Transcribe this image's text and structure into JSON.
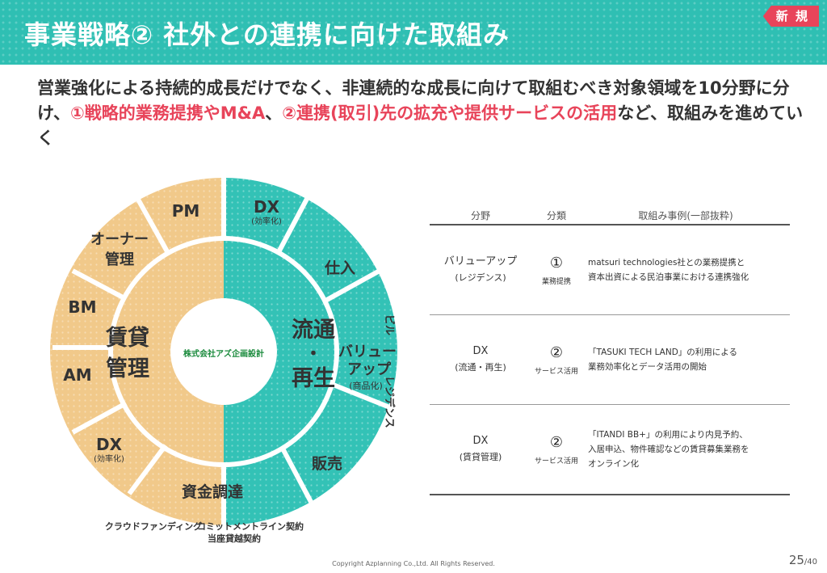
{
  "header": {
    "title": "事業戦略② 社外との連携に向けた取組み",
    "badge": "新 規"
  },
  "lead": {
    "part1": "営業強化による持続的成長だけでなく、非連続的な成長に向けて取組むべき対象領域を10分野に分け、",
    "highlight1": "①戦略的業務提携やM&A",
    "part2": "、",
    "highlight2": "②連携(取引)先の拡充や提供サービスの活用",
    "part3": "など、取組みを進めていく"
  },
  "donut": {
    "center_company": "株式会社アズ企画設計",
    "left_segment": {
      "line1": "賃貸",
      "line2": "管理"
    },
    "right_segment": {
      "line1": "流通",
      "dot": "・",
      "line2": "再生"
    },
    "value_up": {
      "line1": "バリュー",
      "line2": "アップ",
      "sub": "(商品化)"
    },
    "outer": {
      "dx_right": "DX",
      "dx_right_sub": "(効率化)",
      "shiire": "仕入",
      "biru": "ビル",
      "residence": "レジデンス",
      "hanbai": "販売",
      "shikin": "資金調達",
      "dx_left": "DX",
      "dx_left_sub": "(効率化)",
      "am": "AM",
      "bm": "BM",
      "owner": "オーナー",
      "owner2": "管理",
      "pm": "PM"
    },
    "bottom_labels": {
      "crowd": "クラウドファンディング",
      "commitment": "コミットメントライン契約",
      "overdraft": "当座貸越契約"
    },
    "colors": {
      "teal": "#2fbfb3",
      "tan": "#f0c887"
    }
  },
  "table": {
    "headers": [
      "分野",
      "分類",
      "取組み事例(一部抜粋)"
    ],
    "rows": [
      {
        "field": "バリューアップ",
        "field_sub": "(レジデンス)",
        "num": "①",
        "class": "業務提携",
        "ex1": "matsuri technologies社との業務提携と",
        "ex2": "資本出資による民泊事業における連携強化",
        "ex3": ""
      },
      {
        "field": "DX",
        "field_sub": "(流通・再生)",
        "num": "②",
        "class": "サービス活用",
        "ex1": "「TASUKI TECH LAND」の利用による",
        "ex2": "業務効率化とデータ活用の開始",
        "ex3": ""
      },
      {
        "field": "DX",
        "field_sub": "(賃貸管理)",
        "num": "②",
        "class": "サービス活用",
        "ex1": "「ITANDI BB+」の利用により内見予約、",
        "ex2": "入居申込、物件確認などの賃貸募集業務を",
        "ex3": "オンライン化"
      }
    ]
  },
  "footer": {
    "copyright": "Copyright Azplanning Co.,Ltd. All Rights Reserved.",
    "page": "25",
    "total": "/40"
  }
}
